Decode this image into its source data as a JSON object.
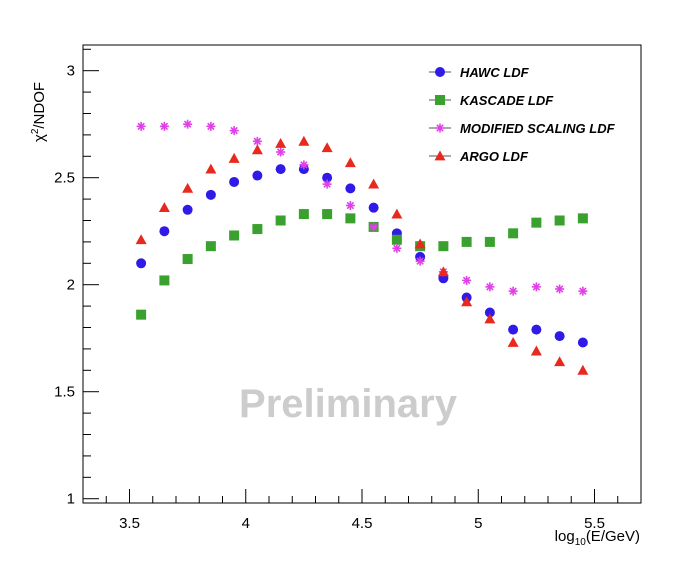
{
  "chart_data": {
    "type": "scatter",
    "title": "",
    "xlabel": "log10(E/GeV)",
    "xlabel_parts": {
      "prefix": "log",
      "sub": "10",
      "suffix": "(E/GeV)"
    },
    "ylabel": "χ2/NDOF",
    "ylabel_parts": {
      "prefix": "χ",
      "sup": "2",
      "suffix": "/NDOF"
    },
    "xlim": [
      3.3,
      5.7
    ],
    "ylim": [
      0.98,
      3.12
    ],
    "xticks": [
      3.5,
      4,
      4.5,
      5,
      5.5
    ],
    "xtick_labels": [
      "3.5",
      "4",
      "4.5",
      "5",
      "5.5"
    ],
    "yticks": [
      1,
      1.5,
      2,
      2.5,
      3
    ],
    "ytick_labels": [
      "1",
      "1.5",
      "2",
      "2.5",
      "3"
    ],
    "legend_position": "top-right",
    "watermark": "Preliminary",
    "x": [
      3.55,
      3.65,
      3.75,
      3.85,
      3.95,
      4.05,
      4.15,
      4.25,
      4.35,
      4.45,
      4.55,
      4.65,
      4.75,
      4.85,
      4.95,
      5.05,
      5.15,
      5.25,
      5.35,
      5.45
    ],
    "series": [
      {
        "name": "HAWC LDF",
        "marker": "circle",
        "color": "#2f1ae8",
        "values": [
          2.1,
          2.25,
          2.35,
          2.42,
          2.48,
          2.51,
          2.54,
          2.54,
          2.5,
          2.45,
          2.36,
          2.24,
          2.13,
          2.03,
          1.94,
          1.87,
          1.79,
          1.79,
          1.76,
          1.73
        ]
      },
      {
        "name": "KASCADE LDF",
        "marker": "square",
        "color": "#3aa02e",
        "values": [
          1.86,
          2.02,
          2.12,
          2.18,
          2.23,
          2.26,
          2.3,
          2.33,
          2.33,
          2.31,
          2.27,
          2.21,
          2.18,
          2.18,
          2.2,
          2.2,
          2.24,
          2.29,
          2.3,
          2.31
        ]
      },
      {
        "name": "MODIFIED SCALING LDF",
        "marker": "star",
        "color": "#e040e8",
        "values": [
          2.74,
          2.74,
          2.75,
          2.74,
          2.72,
          2.67,
          2.62,
          2.56,
          2.47,
          2.37,
          2.27,
          2.17,
          2.11,
          2.06,
          2.02,
          1.99,
          1.97,
          1.99,
          1.98,
          1.97
        ]
      },
      {
        "name": "ARGO LDF",
        "marker": "triangle",
        "color": "#e8291e",
        "values": [
          2.21,
          2.36,
          2.45,
          2.54,
          2.59,
          2.63,
          2.66,
          2.67,
          2.64,
          2.57,
          2.47,
          2.33,
          2.19,
          2.06,
          1.92,
          1.84,
          1.73,
          1.69,
          1.64,
          1.6
        ]
      }
    ]
  }
}
